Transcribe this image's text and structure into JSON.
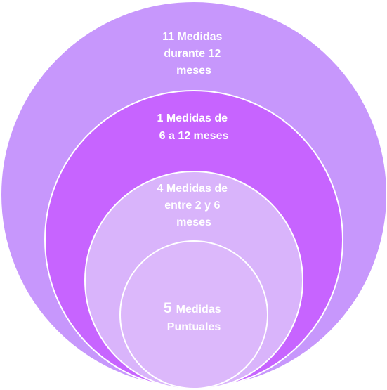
{
  "diagram": {
    "colors": {
      "outer": "#c797fc",
      "second": "#c764ff",
      "third": "#d9b4fb",
      "inner": "#dcb8fb",
      "stroke": "#ffffff"
    },
    "circles": [
      {
        "lines": [
          "11 Medidas",
          "durante 12",
          "meses"
        ]
      },
      {
        "lines": [
          "1 Medidas de",
          "6 a 12 meses"
        ]
      },
      {
        "lines": [
          "4 Medidas de",
          "entre 2 y 6",
          "meses"
        ]
      },
      {
        "number": "5",
        "lines": [
          "Medidas",
          "Puntuales"
        ]
      }
    ]
  }
}
